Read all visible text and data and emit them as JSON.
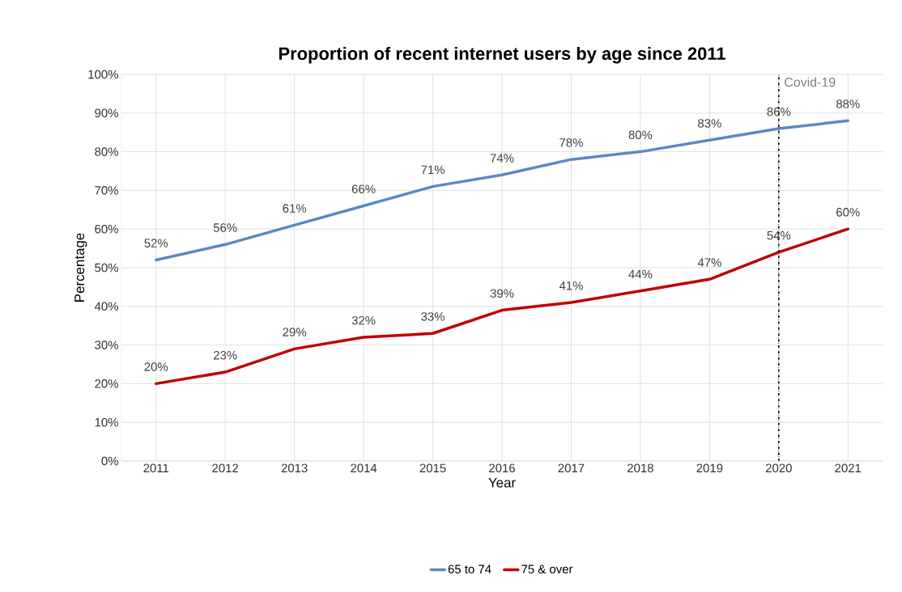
{
  "chart_data": {
    "type": "line",
    "title": "Proportion of recent internet users by age since 2011",
    "xlabel": "Year",
    "ylabel": "Percentage",
    "x": [
      2011,
      2012,
      2013,
      2014,
      2015,
      2016,
      2017,
      2018,
      2019,
      2020,
      2021
    ],
    "series": [
      {
        "name": "65 to 74",
        "color": "#5b89c3",
        "values": [
          52,
          56,
          61,
          66,
          71,
          74,
          78,
          80,
          83,
          86,
          88
        ],
        "value_labels": [
          "52%",
          "56%",
          "61%",
          "66%",
          "71%",
          "74%",
          "78%",
          "80%",
          "83%",
          "86%",
          "88%"
        ]
      },
      {
        "name": "75 & over",
        "color": "#c00000",
        "values": [
          20,
          23,
          29,
          32,
          33,
          39,
          41,
          44,
          47,
          54,
          60
        ],
        "value_labels": [
          "20%",
          "23%",
          "29%",
          "32%",
          "33%",
          "39%",
          "41%",
          "44%",
          "47%",
          "54%",
          "60%"
        ]
      }
    ],
    "xlim": [
      2010.5,
      2021.5
    ],
    "xticks": [
      2011,
      2012,
      2013,
      2014,
      2015,
      2016,
      2017,
      2018,
      2019,
      2020,
      2021
    ],
    "ylim": [
      0,
      100
    ],
    "yticks": [
      {
        "value": 0,
        "label": "0%"
      },
      {
        "value": 10,
        "label": "10%"
      },
      {
        "value": 20,
        "label": "20%"
      },
      {
        "value": 30,
        "label": "30%"
      },
      {
        "value": 40,
        "label": "40%"
      },
      {
        "value": 50,
        "label": "50%"
      },
      {
        "value": 60,
        "label": "60%"
      },
      {
        "value": 70,
        "label": "70%"
      },
      {
        "value": 80,
        "label": "80%"
      },
      {
        "value": 90,
        "label": "90%"
      },
      {
        "value": 100,
        "label": "100%"
      }
    ],
    "ref_lines": [
      {
        "axis": "x",
        "value": 2020,
        "label": "Covid-19",
        "color": "#000000",
        "line_style": "dashdot"
      }
    ],
    "grid": true,
    "legend": "bottom",
    "marker": "none",
    "line_style": "solid"
  }
}
